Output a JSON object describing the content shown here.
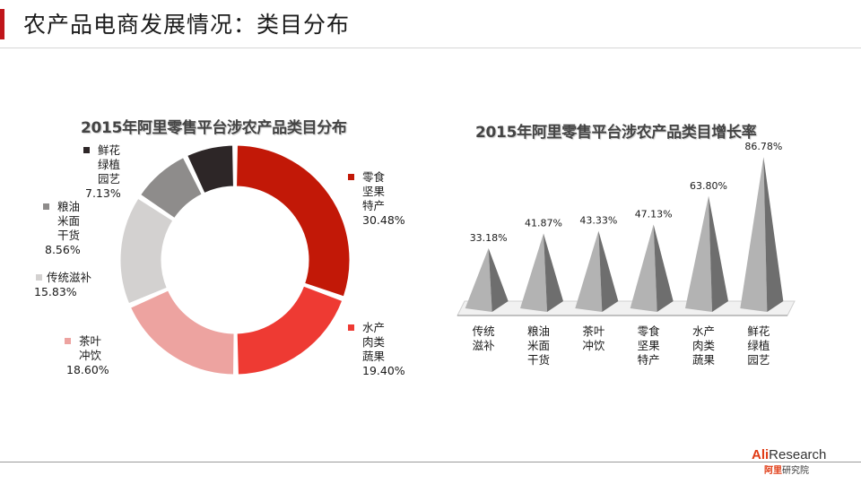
{
  "slide": {
    "title": "农产品电商发展情况：类目分布"
  },
  "chart_data": [
    {
      "type": "donut",
      "title": "2015年阿里零售平台涉农产品类目分布",
      "slices": [
        {
          "name": "零食\n坚果\n特产",
          "pct_label": "30.48%",
          "value": 30.48,
          "color": "#c21807"
        },
        {
          "name": "水产\n肉类\n蔬果",
          "pct_label": "19.40%",
          "value": 19.4,
          "color": "#ee3a33"
        },
        {
          "name": "茶叶\n冲饮",
          "pct_label": "18.60%",
          "value": 18.6,
          "color": "#eda3a0"
        },
        {
          "name": "传统滋补",
          "pct_label": "15.83%",
          "value": 15.83,
          "color": "#d3d1d0"
        },
        {
          "name": "粮油\n米面\n干货",
          "pct_label": "8.56%",
          "value": 8.56,
          "color": "#8e8c8b"
        },
        {
          "name": "鲜花\n绿植\n园艺",
          "pct_label": "7.13%",
          "value": 7.13,
          "color": "#2d2627"
        }
      ]
    },
    {
      "type": "bar",
      "title": "2015年阿里零售平台涉农产品类目增长率",
      "categories": [
        "传统\n滋补",
        "粮油\n米面\n干货",
        "茶叶\n冲饮",
        "零食\n坚果\n特产",
        "水产\n肉类\n蔬果",
        "鲜花\n绿植\n园艺"
      ],
      "values": [
        33.18,
        41.87,
        43.33,
        47.13,
        63.8,
        86.78
      ],
      "value_labels": [
        "33.18%",
        "41.87%",
        "43.33%",
        "47.13%",
        "63.80%",
        "86.78%"
      ],
      "colors": {
        "face_light": "#b3b3b3",
        "face_dark": "#6e6e6e"
      }
    }
  ],
  "logo": {
    "brand_a": "Ali",
    "brand_b": "Research",
    "cn_red": "阿里",
    "cn_grey": "研究院"
  }
}
